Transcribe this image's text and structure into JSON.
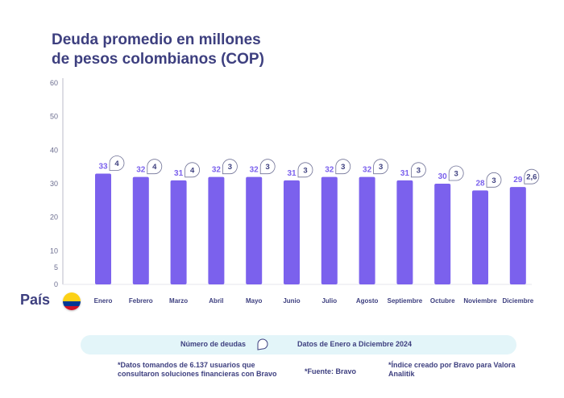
{
  "title": {
    "line1": "Deuda promedio en millones",
    "line2": "de pesos colombianos (COP)"
  },
  "country_label": "País",
  "legend": {
    "label": "Número de deudas",
    "range": "Datos de Enero a Diciembre 2024"
  },
  "notes": {
    "sample": "*Datos tomandos de 6.137 usuarios que consultaron soluciones financieras con Bravo",
    "source": "*Fuente: Bravo",
    "index": "*Índice creado por Bravo para Valora Analitik"
  },
  "colors": {
    "bar": "#7b61ed",
    "value_label": "#7b61ed",
    "title": "#3d3f7f",
    "axis_text": "#3d3f7f",
    "legend_bg": "#e3f5f9",
    "flag_yellow": "#fcd116",
    "flag_blue": "#003893",
    "flag_red": "#ce1126"
  },
  "chart_data": {
    "type": "bar",
    "categories": [
      "Enero",
      "Febrero",
      "Marzo",
      "Abril",
      "Mayo",
      "Junio",
      "Julio",
      "Agosto",
      "Septiembre",
      "Octubre",
      "Noviembre",
      "Diciembre"
    ],
    "series": [
      {
        "values": [
          33,
          32,
          31,
          32,
          32,
          31,
          32,
          32,
          31,
          30,
          28,
          29
        ]
      }
    ],
    "debt_counts": [
      "4",
      "4",
      "4",
      "3",
      "3",
      "3",
      "3",
      "3",
      "3",
      "3",
      "3",
      "2,6"
    ],
    "ylim": [
      0,
      60
    ],
    "yticks": [
      0,
      5,
      10,
      20,
      30,
      40,
      50,
      60
    ],
    "grid": false
  }
}
